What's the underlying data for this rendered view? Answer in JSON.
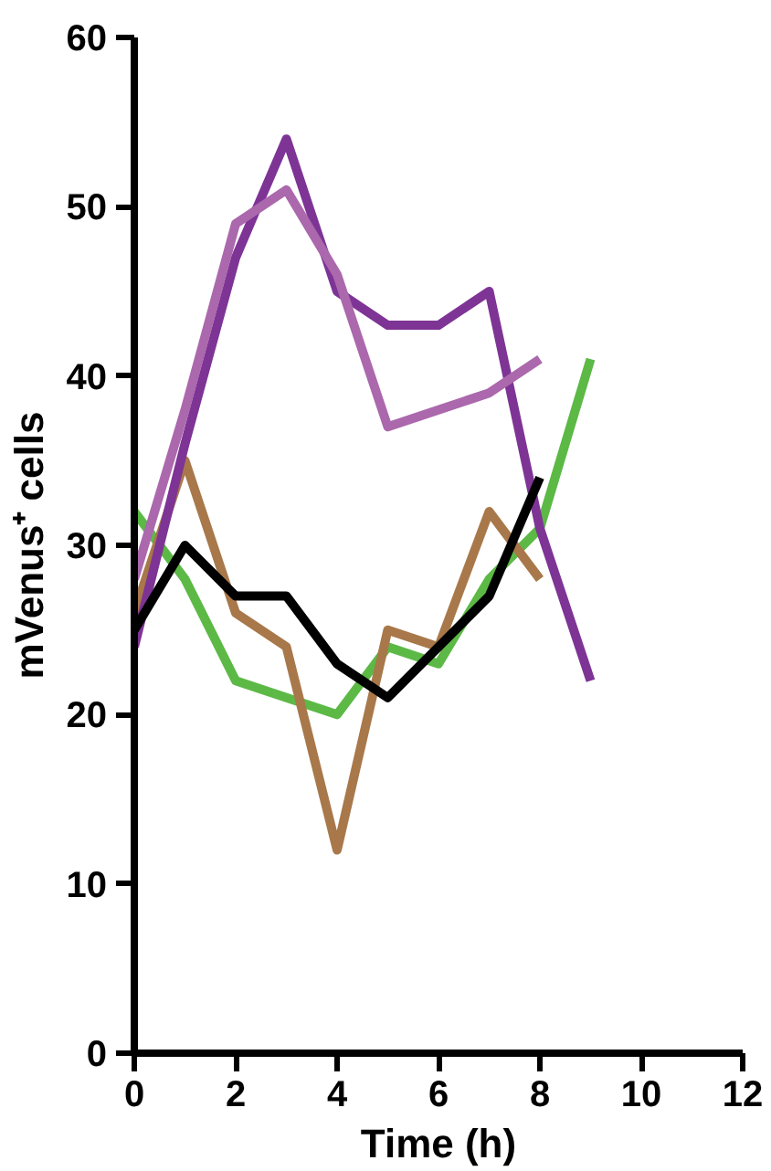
{
  "chart_data": {
    "type": "line",
    "xlabel": "Time (h)",
    "ylabel": "mVenus⁺ cells",
    "xlim": [
      0,
      12
    ],
    "ylim": [
      0,
      60
    ],
    "xticks": [
      0,
      2,
      4,
      6,
      8,
      10,
      12
    ],
    "yticks": [
      0,
      10,
      20,
      30,
      40,
      50,
      60
    ],
    "grid": false,
    "marker": "none",
    "line_style": "solid",
    "series": [
      {
        "color": "#5cb946",
        "x": [
          0,
          1,
          2,
          3,
          4,
          5,
          6,
          7,
          8,
          9
        ],
        "values": [
          32,
          28,
          22,
          21,
          20,
          24,
          23,
          28,
          31,
          41
        ]
      },
      {
        "color": "#a8784a",
        "x": [
          0,
          1,
          2,
          3,
          4,
          5,
          6,
          7,
          8
        ],
        "values": [
          26,
          35,
          26,
          24,
          12,
          25,
          24,
          32,
          28
        ]
      },
      {
        "color": "#7e3495",
        "x": [
          0,
          1,
          2,
          3,
          4,
          5,
          6,
          7,
          8,
          9
        ],
        "values": [
          24,
          36,
          47,
          54,
          45,
          43,
          43,
          45,
          31,
          22
        ]
      },
      {
        "color": "#ab68ad",
        "x": [
          0,
          1,
          2,
          3,
          4,
          5,
          6,
          7,
          8
        ],
        "values": [
          28,
          38,
          49,
          51,
          46,
          37,
          38,
          39,
          41
        ]
      },
      {
        "color": "#000000",
        "x": [
          0,
          1,
          2,
          3,
          4,
          5,
          6,
          7,
          8
        ],
        "values": [
          25,
          30,
          27,
          27,
          23,
          21,
          24,
          27,
          34
        ]
      }
    ]
  }
}
